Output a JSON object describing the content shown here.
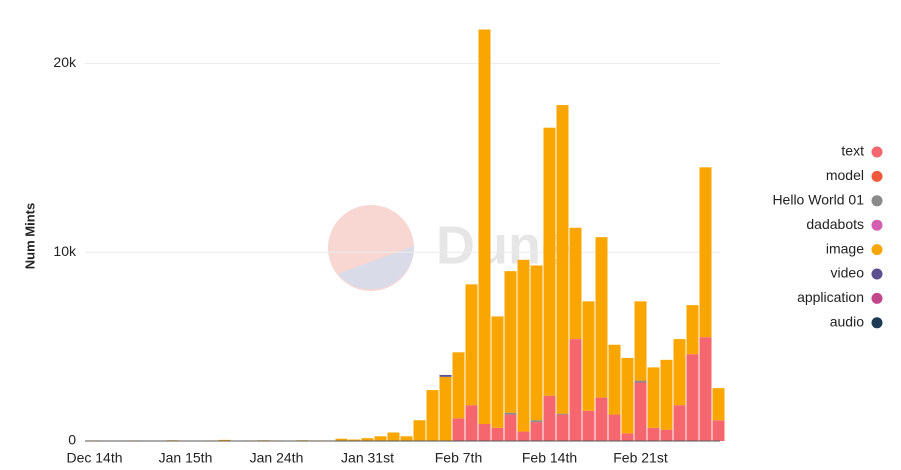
{
  "chart_data": {
    "type": "bar",
    "stacked": true,
    "y_label": "Num Mints",
    "watermark": "Dune",
    "categories": [
      "Dec 14th",
      null,
      null,
      null,
      null,
      null,
      null,
      "Jan 15th",
      null,
      null,
      null,
      null,
      null,
      null,
      "Jan 24th",
      null,
      null,
      null,
      null,
      null,
      null,
      "Jan 31st",
      null,
      null,
      null,
      null,
      null,
      null,
      "Feb 7th",
      null,
      null,
      null,
      null,
      null,
      null,
      "Feb 14th",
      null,
      null,
      null,
      null,
      null,
      null,
      "Feb 21st",
      null,
      null,
      null,
      null,
      null,
      null
    ],
    "series": [
      {
        "name": "text",
        "color": "#f6666f",
        "values": [
          0,
          0,
          0,
          0,
          0,
          0,
          0,
          0,
          0,
          0,
          0,
          0,
          0,
          0,
          0,
          0,
          0,
          0,
          0,
          0,
          0,
          0,
          0,
          0,
          0,
          0,
          0,
          0,
          1200,
          1900,
          900,
          700,
          1400,
          500,
          1000,
          2400,
          1400,
          5400,
          1600,
          2300,
          1400,
          400,
          3100,
          700,
          600,
          1900,
          4600,
          5500,
          1100
        ]
      },
      {
        "name": "model",
        "color": "#ee5a3a",
        "values": [
          0,
          0,
          0,
          0,
          0,
          0,
          0,
          0,
          0,
          0,
          0,
          0,
          0,
          0,
          0,
          0,
          0,
          0,
          0,
          0,
          0,
          0,
          0,
          0,
          0,
          0,
          0,
          0,
          0,
          0,
          0,
          0,
          0,
          0,
          0,
          0,
          0,
          0,
          0,
          0,
          0,
          0,
          0,
          0,
          0,
          0,
          0,
          0,
          0
        ]
      },
      {
        "name": "Hello World 01",
        "color": "#8a8a8a",
        "values": [
          0,
          0,
          0,
          0,
          0,
          0,
          0,
          0,
          0,
          0,
          0,
          0,
          0,
          0,
          0,
          0,
          0,
          0,
          0,
          0,
          0,
          0,
          0,
          0,
          0,
          0,
          0,
          0,
          0,
          0,
          0,
          0,
          100,
          0,
          100,
          0,
          50,
          0,
          0,
          0,
          0,
          0,
          100,
          0,
          0,
          0,
          0,
          0,
          0
        ]
      },
      {
        "name": "dadabots",
        "color": "#d45fb0",
        "values": [
          0,
          0,
          0,
          0,
          0,
          0,
          0,
          0,
          0,
          0,
          0,
          0,
          0,
          0,
          0,
          0,
          0,
          0,
          0,
          0,
          0,
          0,
          0,
          0,
          0,
          0,
          0,
          0,
          0,
          0,
          0,
          0,
          0,
          0,
          0,
          0,
          0,
          0,
          0,
          0,
          0,
          0,
          0,
          0,
          0,
          0,
          0,
          0,
          0
        ]
      },
      {
        "name": "image",
        "color": "#f9a602",
        "values": [
          30,
          20,
          20,
          30,
          20,
          20,
          40,
          20,
          20,
          30,
          60,
          20,
          30,
          40,
          30,
          20,
          40,
          30,
          30,
          120,
          80,
          150,
          250,
          450,
          250,
          1100,
          2700,
          3400,
          3500,
          6400,
          20900,
          5900,
          7500,
          9100,
          8200,
          14200,
          16350,
          5900,
          5800,
          8500,
          3700,
          4000,
          4200,
          3200,
          3700,
          3500,
          2600,
          9000,
          1700
        ]
      },
      {
        "name": "video",
        "color": "#5b4f8f",
        "values": [
          0,
          0,
          0,
          0,
          0,
          0,
          0,
          0,
          0,
          0,
          0,
          0,
          0,
          0,
          0,
          0,
          0,
          0,
          0,
          0,
          0,
          0,
          0,
          0,
          0,
          0,
          0,
          100,
          0,
          0,
          0,
          0,
          0,
          0,
          0,
          0,
          0,
          0,
          0,
          0,
          0,
          0,
          0,
          0,
          0,
          0,
          0,
          0,
          0
        ]
      },
      {
        "name": "application",
        "color": "#c2478a",
        "values": [
          0,
          0,
          0,
          0,
          0,
          0,
          0,
          0,
          0,
          0,
          0,
          0,
          0,
          0,
          0,
          0,
          0,
          0,
          0,
          0,
          0,
          0,
          0,
          0,
          0,
          0,
          0,
          0,
          0,
          0,
          0,
          0,
          0,
          0,
          0,
          0,
          0,
          0,
          0,
          0,
          0,
          0,
          0,
          0,
          0,
          0,
          0,
          0,
          0
        ]
      },
      {
        "name": "audio",
        "color": "#1d3b55",
        "values": [
          0,
          0,
          0,
          0,
          0,
          0,
          0,
          0,
          0,
          0,
          0,
          0,
          0,
          0,
          0,
          0,
          0,
          0,
          0,
          0,
          0,
          0,
          0,
          0,
          0,
          0,
          0,
          0,
          0,
          0,
          0,
          0,
          0,
          0,
          0,
          0,
          0,
          0,
          0,
          0,
          0,
          0,
          0,
          0,
          0,
          0,
          0,
          0,
          0
        ]
      }
    ],
    "ylim": [
      0,
      22200
    ],
    "yticks": [
      0,
      {
        "value": 10000,
        "label": "10k"
      },
      {
        "value": 20000,
        "label": "20k"
      }
    ],
    "grid": true,
    "legend": "right"
  }
}
